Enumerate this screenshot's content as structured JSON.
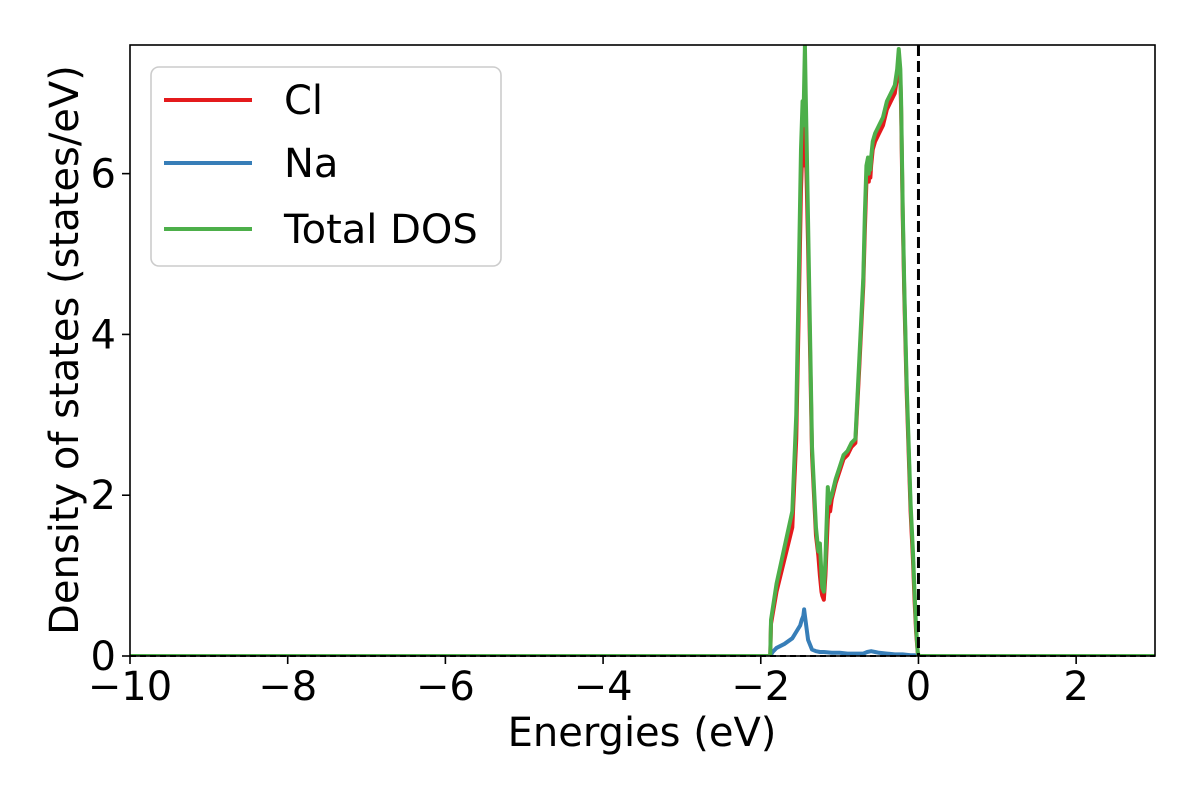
{
  "chart_data": {
    "type": "line",
    "title": "",
    "xlabel": "Energies (eV)",
    "ylabel": "Density of states (states/eV)",
    "xlim": [
      -10,
      3
    ],
    "ylim": [
      0,
      7.6
    ],
    "xticks": [
      -10,
      -8,
      -6,
      -4,
      -2,
      0,
      2
    ],
    "yticks": [
      0,
      2,
      4,
      6
    ],
    "xtick_labels": [
      "−10",
      "−8",
      "−6",
      "−4",
      "−2",
      "0",
      "2"
    ],
    "ytick_labels": [
      "0",
      "2",
      "4",
      "6"
    ],
    "grid": false,
    "legend_position": "top-left",
    "fermi_level": 0,
    "series": [
      {
        "name": "Cl",
        "color": "#e41a1c",
        "x": [
          -10,
          -1.88,
          -1.87,
          -1.8,
          -1.7,
          -1.6,
          -1.55,
          -1.52,
          -1.49,
          -1.47,
          -1.46,
          -1.45,
          -1.44,
          -1.43,
          -1.42,
          -1.4,
          -1.35,
          -1.3,
          -1.27,
          -1.25,
          -1.23,
          -1.22,
          -1.2,
          -1.18,
          -1.15,
          -1.13,
          -1.12,
          -1.1,
          -1.05,
          -1.0,
          -0.95,
          -0.9,
          -0.85,
          -0.8,
          -0.75,
          -0.7,
          -0.68,
          -0.66,
          -0.64,
          -0.63,
          -0.62,
          -0.61,
          -0.6,
          -0.58,
          -0.55,
          -0.5,
          -0.45,
          -0.4,
          -0.35,
          -0.3,
          -0.27,
          -0.25,
          -0.23,
          -0.22,
          -0.2,
          -0.18,
          -0.15,
          -0.12,
          -0.1,
          -0.07,
          -0.05,
          -0.03,
          -0.01,
          0,
          3
        ],
        "y": [
          0,
          0,
          0.4,
          0.8,
          1.2,
          1.6,
          2.7,
          4.2,
          5.8,
          6.4,
          6.1,
          6.4,
          6.6,
          6.3,
          6.0,
          5.1,
          2.5,
          1.5,
          1.25,
          1.0,
          0.8,
          0.75,
          0.7,
          1.0,
          1.7,
          1.9,
          1.8,
          1.95,
          2.15,
          2.3,
          2.45,
          2.5,
          2.6,
          2.65,
          3.6,
          4.6,
          5.3,
          5.9,
          6.1,
          5.9,
          6.05,
          5.95,
          6.1,
          6.3,
          6.4,
          6.5,
          6.6,
          6.8,
          6.9,
          7.0,
          7.2,
          7.4,
          7.2,
          6.8,
          5.5,
          4.5,
          3.3,
          2.4,
          1.8,
          1.2,
          0.7,
          0.3,
          0.05,
          0,
          0
        ]
      },
      {
        "name": "Na",
        "color": "#377eb8",
        "x": [
          -10,
          -1.88,
          -1.85,
          -1.8,
          -1.7,
          -1.6,
          -1.55,
          -1.5,
          -1.48,
          -1.46,
          -1.45,
          -1.44,
          -1.42,
          -1.4,
          -1.35,
          -1.3,
          -1.25,
          -1.2,
          -1.1,
          -1.0,
          -0.9,
          -0.8,
          -0.7,
          -0.65,
          -0.6,
          -0.55,
          -0.5,
          -0.4,
          -0.3,
          -0.2,
          -0.1,
          -0.05,
          0,
          3
        ],
        "y": [
          0,
          0,
          0.05,
          0.1,
          0.15,
          0.22,
          0.3,
          0.38,
          0.45,
          0.5,
          0.58,
          0.5,
          0.35,
          0.2,
          0.08,
          0.06,
          0.05,
          0.05,
          0.04,
          0.04,
          0.03,
          0.03,
          0.03,
          0.05,
          0.06,
          0.05,
          0.04,
          0.03,
          0.02,
          0.02,
          0.01,
          0.01,
          0,
          0
        ]
      },
      {
        "name": "Total DOS",
        "color": "#4daf4a",
        "x": [
          -10,
          -1.88,
          -1.87,
          -1.8,
          -1.7,
          -1.6,
          -1.55,
          -1.52,
          -1.49,
          -1.47,
          -1.46,
          -1.45,
          -1.44,
          -1.43,
          -1.42,
          -1.4,
          -1.35,
          -1.3,
          -1.27,
          -1.25,
          -1.23,
          -1.22,
          -1.2,
          -1.18,
          -1.15,
          -1.13,
          -1.12,
          -1.1,
          -1.05,
          -1.0,
          -0.95,
          -0.9,
          -0.85,
          -0.8,
          -0.75,
          -0.7,
          -0.68,
          -0.66,
          -0.64,
          -0.63,
          -0.62,
          -0.61,
          -0.6,
          -0.58,
          -0.55,
          -0.5,
          -0.45,
          -0.4,
          -0.35,
          -0.3,
          -0.27,
          -0.25,
          -0.23,
          -0.22,
          -0.2,
          -0.18,
          -0.15,
          -0.12,
          -0.1,
          -0.07,
          -0.05,
          -0.03,
          -0.01,
          0,
          3
        ],
        "y": [
          0,
          0,
          0.45,
          0.9,
          1.35,
          1.8,
          3.0,
          4.6,
          6.3,
          6.9,
          6.6,
          7.1,
          7.6,
          7.0,
          6.5,
          5.4,
          2.6,
          1.6,
          1.3,
          1.4,
          1.0,
          0.85,
          0.8,
          1.2,
          2.1,
          1.9,
          1.95,
          2.0,
          2.2,
          2.35,
          2.5,
          2.55,
          2.65,
          2.7,
          3.7,
          4.7,
          5.5,
          6.1,
          6.2,
          6.0,
          6.2,
          6.05,
          6.2,
          6.4,
          6.5,
          6.6,
          6.7,
          6.9,
          7.0,
          7.1,
          7.3,
          7.55,
          7.3,
          6.9,
          5.6,
          4.6,
          3.4,
          2.5,
          1.9,
          1.3,
          0.8,
          0.35,
          0.06,
          0,
          0
        ]
      }
    ]
  }
}
